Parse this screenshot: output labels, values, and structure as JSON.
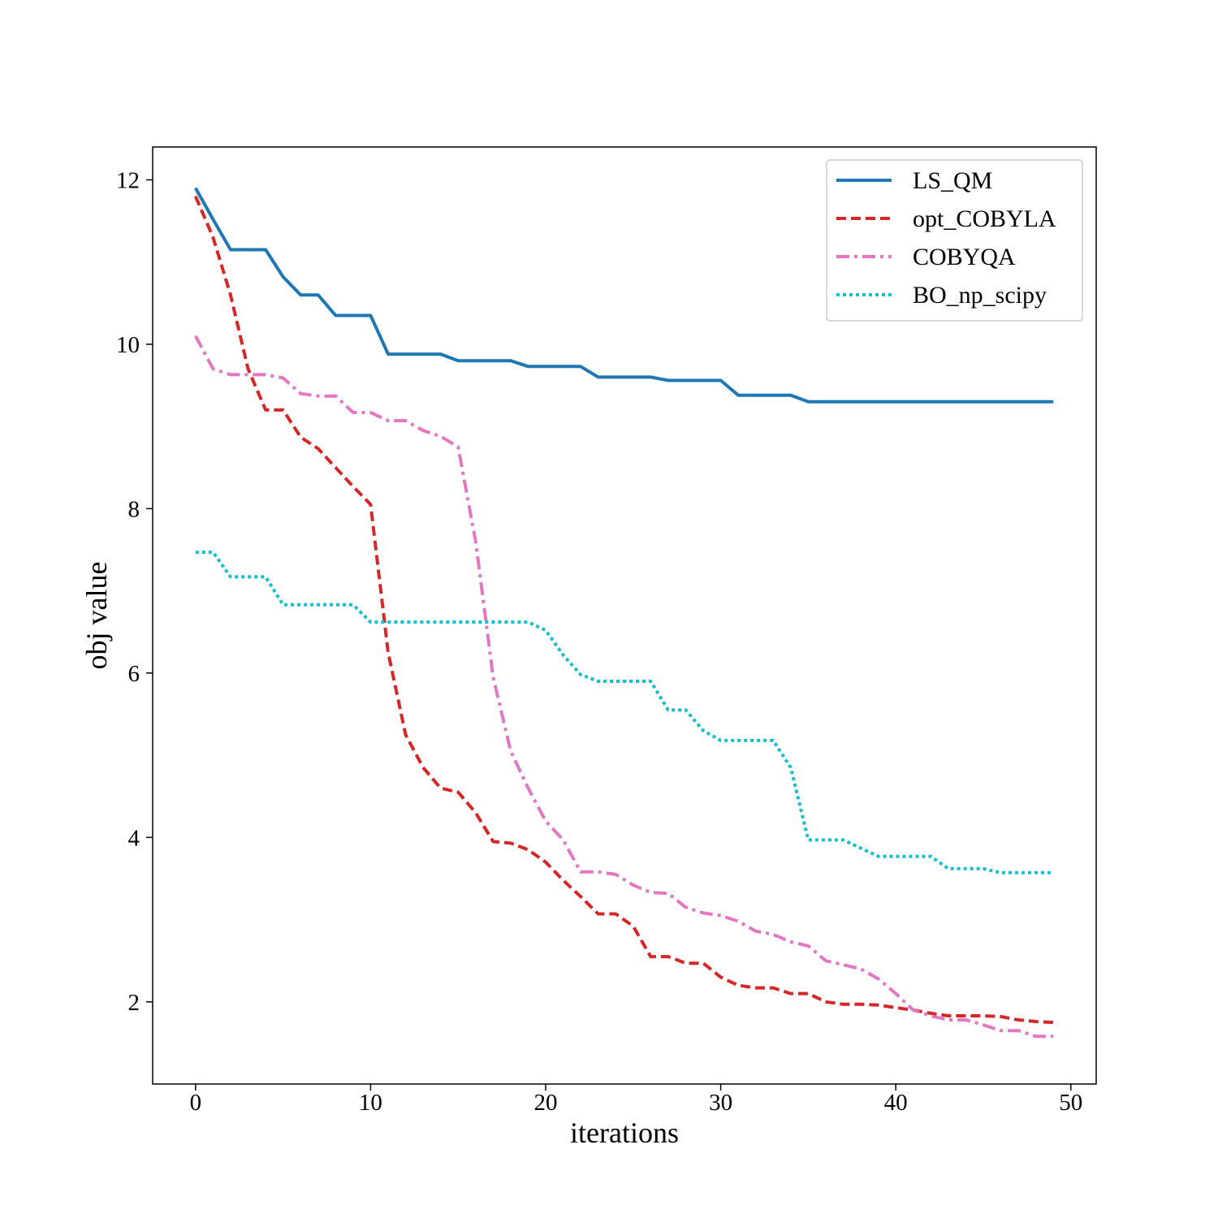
{
  "chart_data": {
    "type": "line",
    "title": "",
    "xlabel": "iterations",
    "ylabel": "obj value",
    "xlim": [
      -2.45,
      51.45
    ],
    "ylim": [
      1.0,
      12.4
    ],
    "xticks": [
      0,
      10,
      20,
      30,
      40,
      50
    ],
    "yticks": [
      2,
      4,
      6,
      8,
      10,
      12
    ],
    "grid": false,
    "legend_position": "top-right",
    "x": [
      0,
      1,
      2,
      3,
      4,
      5,
      6,
      7,
      8,
      9,
      10,
      11,
      12,
      13,
      14,
      15,
      16,
      17,
      18,
      19,
      20,
      21,
      22,
      23,
      24,
      25,
      26,
      27,
      28,
      29,
      30,
      31,
      32,
      33,
      34,
      35,
      36,
      37,
      38,
      39,
      40,
      41,
      42,
      43,
      44,
      45,
      46,
      47,
      48,
      49
    ],
    "series": [
      {
        "name": "LS_QM",
        "color": "#1f77b4",
        "dash": "solid",
        "values": [
          11.9,
          11.52,
          11.15,
          11.15,
          11.15,
          10.82,
          10.6,
          10.6,
          10.35,
          10.35,
          10.35,
          9.88,
          9.88,
          9.88,
          9.88,
          9.8,
          9.8,
          9.8,
          9.8,
          9.73,
          9.73,
          9.73,
          9.73,
          9.6,
          9.6,
          9.6,
          9.6,
          9.56,
          9.56,
          9.56,
          9.56,
          9.38,
          9.38,
          9.38,
          9.38,
          9.3,
          9.3,
          9.3,
          9.3,
          9.3,
          9.3,
          9.3,
          9.3,
          9.3,
          9.3,
          9.3,
          9.3,
          9.3,
          9.3,
          9.3
        ]
      },
      {
        "name": "opt_COBYLA",
        "color": "#d62728",
        "dash": "dashed",
        "values": [
          11.8,
          11.3,
          10.6,
          9.7,
          9.2,
          9.2,
          8.87,
          8.73,
          8.5,
          8.27,
          8.05,
          6.25,
          5.25,
          4.85,
          4.6,
          4.55,
          4.3,
          3.95,
          3.93,
          3.85,
          3.7,
          3.48,
          3.28,
          3.07,
          3.07,
          2.92,
          2.55,
          2.55,
          2.47,
          2.47,
          2.3,
          2.2,
          2.17,
          2.17,
          2.1,
          2.1,
          2.0,
          1.97,
          1.97,
          1.96,
          1.93,
          1.9,
          1.86,
          1.83,
          1.83,
          1.83,
          1.82,
          1.78,
          1.76,
          1.75
        ]
      },
      {
        "name": "COBYQA",
        "color": "#e377c2",
        "dash": "dashdot",
        "values": [
          10.1,
          9.7,
          9.63,
          9.63,
          9.63,
          9.59,
          9.4,
          9.37,
          9.37,
          9.17,
          9.17,
          9.07,
          9.07,
          8.95,
          8.88,
          8.75,
          7.6,
          5.95,
          5.05,
          4.6,
          4.2,
          3.97,
          3.58,
          3.58,
          3.55,
          3.42,
          3.33,
          3.32,
          3.15,
          3.08,
          3.05,
          2.98,
          2.86,
          2.82,
          2.73,
          2.68,
          2.5,
          2.45,
          2.4,
          2.28,
          2.1,
          1.9,
          1.83,
          1.78,
          1.78,
          1.72,
          1.65,
          1.65,
          1.58,
          1.58
        ]
      },
      {
        "name": "BO_np_scipy",
        "color": "#17becf",
        "dash": "dotted",
        "values": [
          7.47,
          7.47,
          7.17,
          7.17,
          7.17,
          6.83,
          6.83,
          6.83,
          6.83,
          6.83,
          6.62,
          6.62,
          6.62,
          6.62,
          6.62,
          6.62,
          6.62,
          6.62,
          6.62,
          6.62,
          6.52,
          6.22,
          5.98,
          5.9,
          5.9,
          5.9,
          5.9,
          5.55,
          5.55,
          5.3,
          5.18,
          5.18,
          5.18,
          5.18,
          4.85,
          3.97,
          3.97,
          3.97,
          3.87,
          3.77,
          3.77,
          3.77,
          3.77,
          3.62,
          3.62,
          3.62,
          3.57,
          3.57,
          3.57,
          3.57
        ]
      }
    ]
  }
}
